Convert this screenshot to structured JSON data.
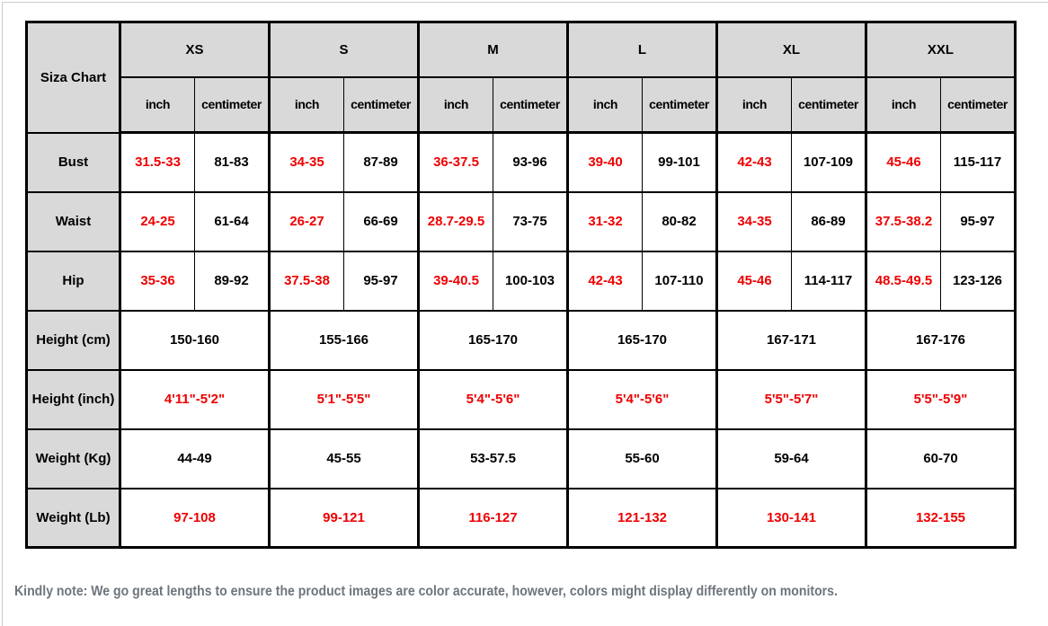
{
  "page": {
    "note": "Kindly note: We go great lengths to ensure the product images are color accurate, however, colors might display differently on monitors."
  },
  "colors": {
    "accent_red": "#ee0000",
    "header_gray": "#d9d9d9",
    "border_black": "#000000",
    "note_gray": "#6e757c"
  },
  "chart": {
    "title": "Siza Chart",
    "sizes": [
      "XS",
      "S",
      "M",
      "L",
      "XL",
      "XXL"
    ],
    "units": {
      "inch": "inch",
      "cm": "centimeter"
    },
    "measures": [
      {
        "label": "Bust",
        "inch": [
          "31.5-33",
          "34-35",
          "36-37.5",
          "39-40",
          "42-43",
          "45-46"
        ],
        "cm": [
          "81-83",
          "87-89",
          "93-96",
          "99-101",
          "107-109",
          "115-117"
        ]
      },
      {
        "label": "Waist",
        "inch": [
          "24-25",
          "26-27",
          "28.7-29.5",
          "31-32",
          "34-35",
          "37.5-38.2"
        ],
        "cm": [
          "61-64",
          "66-69",
          "73-75",
          "80-82",
          "86-89",
          "95-97"
        ]
      },
      {
        "label": "Hip",
        "inch": [
          "35-36",
          "37.5-38",
          "39-40.5",
          "42-43",
          "45-46",
          "48.5-49.5"
        ],
        "cm": [
          "89-92",
          "95-97",
          "100-103",
          "107-110",
          "114-117",
          "123-126"
        ]
      },
      {
        "label": "Height (cm)",
        "values": [
          "150-160",
          "155-166",
          "165-170",
          "165-170",
          "167-171",
          "167-176"
        ]
      },
      {
        "label": "Height (inch)",
        "values": [
          "4'11\"-5'2\"",
          "5'1\"-5'5\"",
          "5'4\"-5'6\"",
          "5'4\"-5'6\"",
          "5'5\"-5'7\"",
          "5'5\"-5'9\""
        ]
      },
      {
        "label": "Weight (Kg)",
        "values": [
          "44-49",
          "45-55",
          "53-57.5",
          "55-60",
          "59-64",
          "60-70"
        ]
      },
      {
        "label": "Weight (Lb)",
        "values": [
          "97-108",
          "99-121",
          "116-127",
          "121-132",
          "130-141",
          "132-155"
        ]
      }
    ]
  }
}
